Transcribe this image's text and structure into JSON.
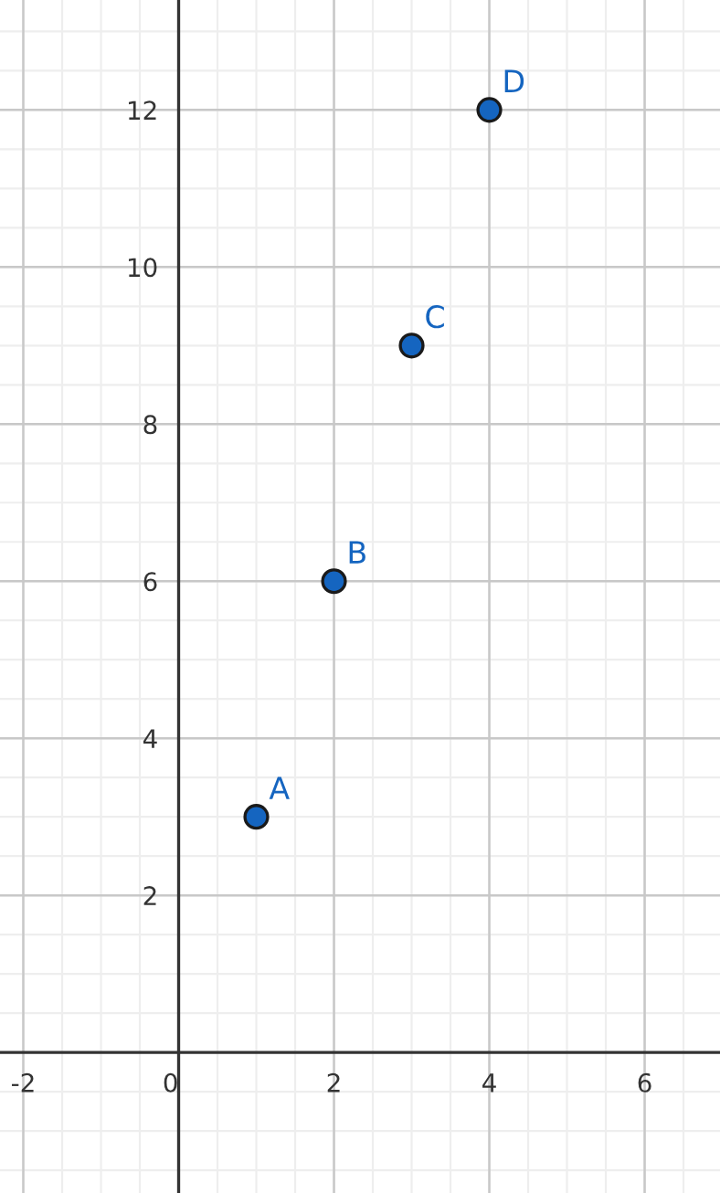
{
  "chart_data": {
    "type": "scatter",
    "x": [
      1,
      2,
      3,
      4
    ],
    "series": [
      {
        "color": "#1565c0",
        "values": [
          3,
          6,
          9,
          12
        ]
      }
    ],
    "annotations": [
      {
        "text": "A",
        "x": 1,
        "y": 3
      },
      {
        "text": "B",
        "x": 2,
        "y": 6
      },
      {
        "text": "C",
        "x": 3,
        "y": 9
      },
      {
        "text": "D",
        "x": 4,
        "y": 12
      }
    ],
    "xlim": [
      -2.3,
      6.97
    ],
    "ylim": [
      -1.79,
      13.4
    ],
    "xticks": [
      -2,
      0,
      2,
      4,
      6
    ],
    "yticks": [
      2,
      4,
      6,
      8,
      10,
      12
    ],
    "grid": true,
    "marker": "circle"
  }
}
